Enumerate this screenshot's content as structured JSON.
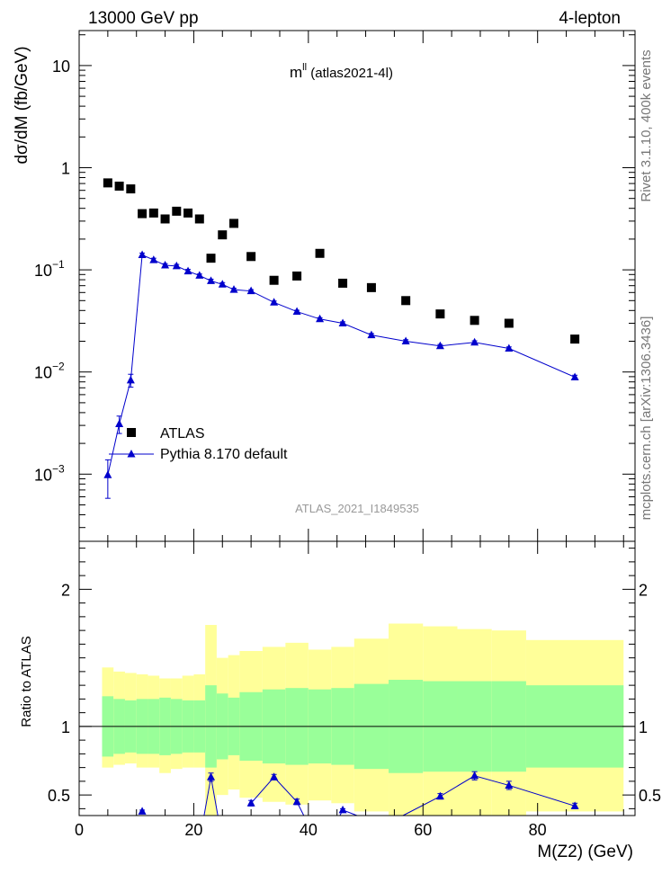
{
  "header": {
    "left": "13000 GeV pp",
    "right": "4-lepton"
  },
  "side_labels": {
    "rivet": "Rivet 3.1.10,  400k events",
    "mcplots": "mcplots.cern.ch [arXiv:1306.3436]"
  },
  "chart_data": [
    {
      "type": "scatter",
      "title_main": "m",
      "title_sup": "ll",
      "title_rest": " (atlas2021-4l)",
      "watermark": "ATLAS_2021_I1849535",
      "ylabel": "dσ/dM (fb/GeV)",
      "yscale": "log",
      "ylim": [
        0.00022,
        22
      ],
      "xlim": [
        0,
        97
      ],
      "y_ticks": [
        {
          "v": 0.001,
          "base": "10",
          "exp": "−3"
        },
        {
          "v": 0.01,
          "base": "10",
          "exp": "−2"
        },
        {
          "v": 0.1,
          "base": "10",
          "exp": "−1"
        },
        {
          "v": 1,
          "base": "1",
          "exp": ""
        },
        {
          "v": 10,
          "base": "10",
          "exp": ""
        }
      ],
      "legend": {
        "position": "lower-left",
        "entries": [
          "ATLAS",
          "Pythia 8.170 default"
        ]
      },
      "series": [
        {
          "name": "ATLAS",
          "marker": "square",
          "color": "#000000",
          "x": [
            5,
            7,
            9,
            11,
            13,
            15,
            17,
            19,
            21,
            23,
            25,
            27,
            30,
            34,
            38,
            42,
            46,
            51,
            57,
            63,
            69,
            75,
            86.5
          ],
          "y": [
            0.71,
            0.66,
            0.62,
            0.355,
            0.36,
            0.315,
            0.375,
            0.36,
            0.315,
            0.13,
            0.22,
            0.285,
            0.135,
            0.079,
            0.087,
            0.145,
            0.074,
            0.067,
            0.05,
            0.037,
            0.032,
            0.03,
            0.021
          ]
        },
        {
          "name": "Pythia 8.170 default",
          "marker": "triangle",
          "color": "#0000cc",
          "x": [
            5,
            7,
            9,
            11,
            13,
            15,
            17,
            19,
            21,
            23,
            25,
            27,
            30,
            34,
            38,
            42,
            46,
            51,
            57,
            63,
            69,
            75,
            86.5
          ],
          "y": [
            0.00098,
            0.0031,
            0.0083,
            0.14,
            0.125,
            0.111,
            0.109,
            0.097,
            0.088,
            0.078,
            0.072,
            0.064,
            0.062,
            0.048,
            0.039,
            0.033,
            0.03,
            0.023,
            0.02,
            0.018,
            0.0195,
            0.017,
            0.0089
          ],
          "err": [
            0.0004,
            0.0006,
            0.0012,
            0.006,
            0.005,
            0.004,
            0.004,
            0.004,
            0.003,
            0.003,
            0.003,
            0.002,
            0.002,
            0.0015,
            0.0012,
            0.001,
            0.001,
            0.0008,
            0.0007,
            0.0006,
            0.0007,
            0.0006,
            0.0004
          ]
        }
      ]
    },
    {
      "type": "scatter",
      "ylabel": "Ratio to ATLAS",
      "xlabel": "M(Z2) (GeV)",
      "ylim": [
        0.35,
        2.35
      ],
      "xlim": [
        0,
        97
      ],
      "y_ticks": [
        0.5,
        1,
        2
      ],
      "y_tick_labels": [
        "0.5",
        "1",
        "2"
      ],
      "x_ticks": [
        0,
        20,
        40,
        60,
        80
      ],
      "x_tick_labels": [
        "0",
        "20",
        "40",
        "60",
        "80"
      ],
      "reference_line": 1,
      "colors": {
        "band_inner": "#99ff99",
        "band_outer": "#ffff99"
      },
      "bands": {
        "edges": [
          4,
          6,
          8,
          10,
          12,
          14,
          16,
          18,
          20,
          22,
          24,
          26,
          28,
          32,
          36,
          40,
          44,
          48,
          54,
          60,
          66,
          72,
          78,
          95
        ],
        "inner_lo": [
          0.78,
          0.8,
          0.81,
          0.8,
          0.8,
          0.79,
          0.8,
          0.81,
          0.81,
          0.7,
          0.76,
          0.79,
          0.75,
          0.73,
          0.72,
          0.73,
          0.72,
          0.69,
          0.66,
          0.67,
          0.67,
          0.67,
          0.7
        ],
        "inner_hi": [
          1.22,
          1.2,
          1.19,
          1.2,
          1.2,
          1.21,
          1.2,
          1.19,
          1.19,
          1.3,
          1.24,
          1.21,
          1.25,
          1.27,
          1.28,
          1.27,
          1.28,
          1.31,
          1.34,
          1.33,
          1.33,
          1.33,
          1.3
        ],
        "outer_lo": [
          0.7,
          0.72,
          0.73,
          0.7,
          0.7,
          0.66,
          0.69,
          0.7,
          0.7,
          0.35,
          0.5,
          0.54,
          0.48,
          0.45,
          0.43,
          0.46,
          0.44,
          0.38,
          0.3,
          0.31,
          0.32,
          0.32,
          0.38
        ],
        "outer_hi": [
          1.43,
          1.4,
          1.39,
          1.38,
          1.37,
          1.35,
          1.35,
          1.37,
          1.38,
          1.74,
          1.5,
          1.52,
          1.55,
          1.58,
          1.61,
          1.56,
          1.58,
          1.64,
          1.75,
          1.73,
          1.71,
          1.7,
          1.63
        ]
      },
      "series": [
        {
          "name": "Pythia 8.170 default",
          "color": "#0000cc",
          "x": [
            11,
            23,
            30,
            34,
            38,
            46,
            63,
            69,
            75,
            86.5
          ],
          "y": [
            0.38,
            0.63,
            0.44,
            0.63,
            0.45,
            0.39,
            0.49,
            0.64,
            0.57,
            0.42
          ],
          "err": [
            0.01,
            0.03,
            0.02,
            0.02,
            0.02,
            0.01,
            0.02,
            0.03,
            0.03,
            0.02
          ],
          "segments": [
            [
              0,
              0
            ],
            [
              1,
              1
            ],
            [
              2,
              4
            ],
            [
              5,
              5
            ],
            [
              6,
              9
            ]
          ],
          "line_exits": [
            {
              "from": [
                23,
                0.63
              ],
              "to": [
                21.8,
                0.35
              ]
            },
            {
              "from": [
                23,
                0.63
              ],
              "to": [
                24.2,
                0.35
              ]
            },
            {
              "from": [
                38,
                0.45
              ],
              "to": [
                39.2,
                0.35
              ]
            },
            {
              "from": [
                46,
                0.39
              ],
              "to": [
                45.5,
                0.35
              ]
            },
            {
              "from": [
                46,
                0.39
              ],
              "to": [
                48.5,
                0.35
              ]
            },
            {
              "from": [
                63,
                0.49
              ],
              "to": [
                56.5,
                0.35
              ]
            }
          ]
        }
      ]
    }
  ]
}
